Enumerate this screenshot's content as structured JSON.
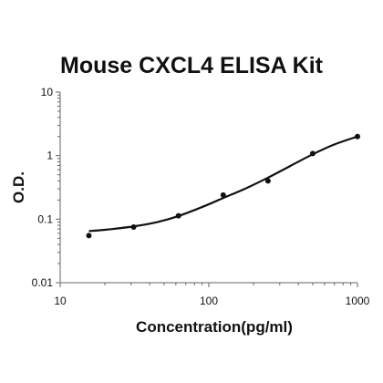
{
  "chart_data": {
    "type": "scatter",
    "title": "Mouse CXCL4 ELISA Kit",
    "xlabel": "Concentration(pg/ml)",
    "ylabel": "O.D.",
    "x_scale": "log",
    "y_scale": "log",
    "xlim": [
      10,
      1000
    ],
    "ylim": [
      0.01,
      10
    ],
    "x_ticks": [
      "10",
      "100",
      "1000"
    ],
    "y_ticks": [
      "10",
      "1",
      "0.1",
      "0.01"
    ],
    "grid": false,
    "legend": "none",
    "points": [
      {
        "x": 15.6,
        "y": 0.055
      },
      {
        "x": 31.2,
        "y": 0.075
      },
      {
        "x": 62.5,
        "y": 0.113
      },
      {
        "x": 125,
        "y": 0.24
      },
      {
        "x": 250,
        "y": 0.4
      },
      {
        "x": 500,
        "y": 1.08
      },
      {
        "x": 1000,
        "y": 2.0
      }
    ],
    "fit_curve": [
      {
        "x": 15.6,
        "y": 0.065
      },
      {
        "x": 20,
        "y": 0.068
      },
      {
        "x": 31.2,
        "y": 0.077
      },
      {
        "x": 45,
        "y": 0.09
      },
      {
        "x": 62.5,
        "y": 0.112
      },
      {
        "x": 90,
        "y": 0.155
      },
      {
        "x": 125,
        "y": 0.215
      },
      {
        "x": 180,
        "y": 0.31
      },
      {
        "x": 250,
        "y": 0.45
      },
      {
        "x": 350,
        "y": 0.68
      },
      {
        "x": 500,
        "y": 1.05
      },
      {
        "x": 700,
        "y": 1.5
      },
      {
        "x": 1000,
        "y": 2.0
      }
    ],
    "colors": {
      "points": "#111111",
      "curve": "#111111",
      "axis": "#666666"
    }
  }
}
